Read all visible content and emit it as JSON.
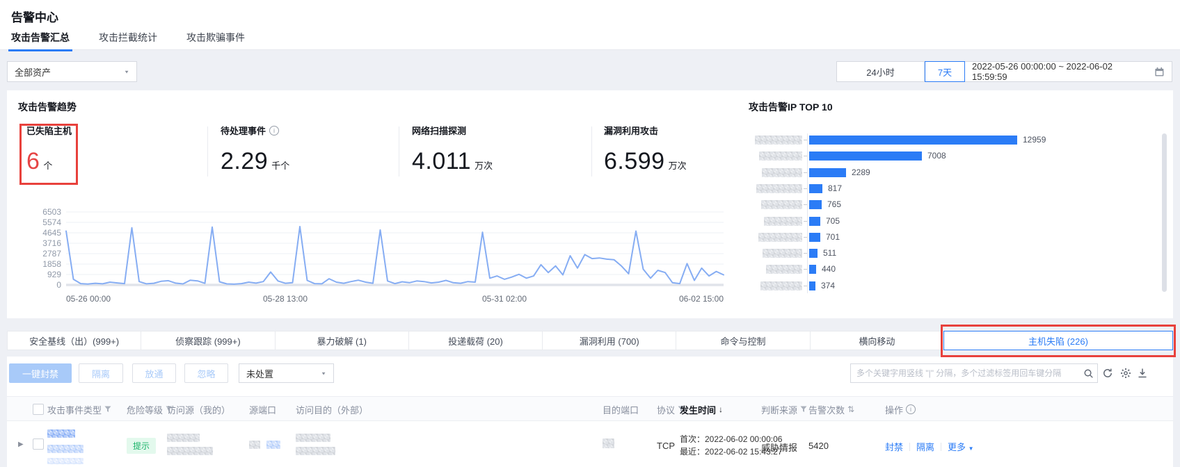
{
  "page": {
    "title": "告警中心"
  },
  "colors": {
    "accent": "#2b7cf6",
    "annotation_red": "#e8413c",
    "line_series": "#86adf3",
    "bar_series": "#2b7cf6",
    "danger_red": "#e64545",
    "badge_green": "#18b268"
  },
  "top_tabs": [
    {
      "label": "攻击告警汇总",
      "active": true
    },
    {
      "label": "攻击拦截统计",
      "active": false
    },
    {
      "label": "攻击欺骗事件",
      "active": false
    }
  ],
  "filters": {
    "asset_select": "全部资产",
    "quick_ranges": [
      {
        "label": "24小时",
        "active": false
      },
      {
        "label": "7天",
        "active": true
      }
    ],
    "date_range": "2022-05-26 00:00:00 ~ 2022-06-02 15:59:59"
  },
  "trend": {
    "title": "攻击告警趋势",
    "cards": [
      {
        "label": "已失陷主机",
        "value": "6",
        "unit": "个",
        "highlighted": true
      },
      {
        "label": "待处理事件",
        "value": "2.29",
        "unit": "千个",
        "info": true
      },
      {
        "label": "网络扫描探测",
        "value": "4.011",
        "unit": "万次"
      },
      {
        "label": "漏洞利用攻击",
        "value": "6.599",
        "unit": "万次"
      }
    ]
  },
  "top_ip": {
    "title": "攻击告警IP TOP 10",
    "labels_blurred": true
  },
  "chart_data": [
    {
      "type": "line",
      "title": "攻击告警趋势",
      "color": "#86adf3",
      "ylim": [
        0,
        6503
      ],
      "y_ticks": [
        6503,
        5574,
        4645,
        3716,
        2787,
        1858,
        929,
        0
      ],
      "x_ticks": [
        "05-26 00:00",
        "05-28 13:00",
        "05-31 02:00",
        "06-02 15:00"
      ],
      "grid": true,
      "values": [
        4800,
        500,
        120,
        80,
        150,
        100,
        250,
        180,
        120,
        5100,
        300,
        100,
        150,
        320,
        380,
        160,
        90,
        420,
        360,
        140,
        5150,
        280,
        90,
        70,
        120,
        250,
        160,
        300,
        1150,
        350,
        150,
        200,
        5200,
        400,
        120,
        100,
        550,
        250,
        150,
        300,
        420,
        250,
        150,
        4900,
        350,
        120,
        280,
        200,
        350,
        300,
        180,
        250,
        400,
        200,
        150,
        300,
        250,
        4700,
        600,
        800,
        500,
        700,
        950,
        600,
        800,
        1800,
        1100,
        1700,
        900,
        2600,
        1500,
        2700,
        2350,
        2400,
        2300,
        2250,
        1700,
        1000,
        4800,
        1400,
        600,
        1300,
        1100,
        200,
        120,
        1900,
        400,
        1500,
        800,
        1200,
        900
      ]
    },
    {
      "type": "bar",
      "title": "攻击告警IP TOP 10",
      "orientation": "horizontal",
      "color": "#2b7cf6",
      "categories_blurred": true,
      "values": [
        12959,
        7008,
        2289,
        817,
        765,
        705,
        701,
        511,
        440,
        374
      ],
      "xlim": [
        0,
        13000
      ]
    }
  ],
  "category_tabs": [
    {
      "label": "安全基线（出）(999+)",
      "active": false
    },
    {
      "label": "侦察跟踪 (999+)",
      "active": false
    },
    {
      "label": "暴力破解 (1)",
      "active": false
    },
    {
      "label": "投递载荷 (20)",
      "active": false
    },
    {
      "label": "漏洞利用 (700)",
      "active": false
    },
    {
      "label": "命令与控制",
      "active": false
    },
    {
      "label": "横向移动",
      "active": false
    },
    {
      "label": "主机失陷 (226)",
      "active": true,
      "annotated": true
    }
  ],
  "toolbar": {
    "ban_button": "一键封禁",
    "isolate_button": "隔离",
    "allow_button": "放通",
    "ignore_button": "忽略",
    "status_select": "未处置",
    "search_placeholder": "多个关键字用竖线 \"|\" 分隔，多个过滤标签用回车键分隔"
  },
  "table": {
    "headers": {
      "type": "攻击事件类型",
      "level": "危险等级",
      "src": "访问源（我的）",
      "sport": "源端口",
      "dst": "访问目的（外部）",
      "dport": "目的端口",
      "proto": "协议",
      "time": "发生时间",
      "judge": "判断来源",
      "count": "告警次数",
      "op": "操作"
    },
    "row": {
      "level_badge": "提示",
      "proto": "TCP",
      "time_first": "首次：2022-06-02 00:00:06",
      "time_last": "最近：2022-06-02 15:43:27",
      "judge": "威胁情报",
      "count": "5420",
      "op_ban": "封禁",
      "op_isolate": "隔离",
      "op_more": "更多"
    }
  }
}
